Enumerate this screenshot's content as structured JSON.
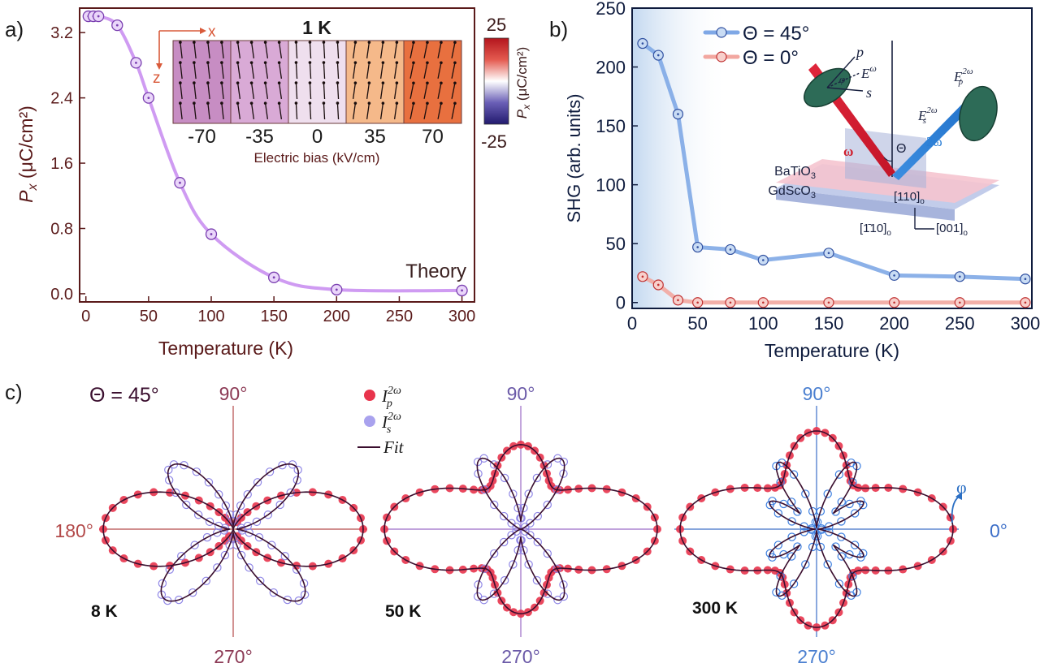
{
  "panels": {
    "a": "a)",
    "b": "b)",
    "c": "c)"
  },
  "colors": {
    "panel_a_axes": "#5a1a1a",
    "panel_a_line": "#cf9bf2",
    "panel_a_marker": "#7a3fb0",
    "panel_b_axes": "#0e1b3d",
    "series_45": "#7fa8e6",
    "series_0": "#f2a7a0",
    "ip": "#e8344c",
    "is": "#8f86e6",
    "fit": "#3a0e2e",
    "axis_c1": "#b34a4a",
    "axis_c2": "#9b6bc6",
    "axis_c3": "#3d6fc8"
  },
  "chart_data": [
    {
      "id": "a",
      "type": "line",
      "xlabel": "Temperature (K)",
      "ylabel_main": "P",
      "ylabel_sub": "x",
      "ylabel_unit": " (μC/cm²)",
      "xlim": [
        -5,
        310
      ],
      "ylim": [
        -0.1,
        3.5
      ],
      "xticks": [
        0,
        50,
        100,
        150,
        200,
        250,
        300
      ],
      "yticks": [
        0.0,
        0.8,
        1.6,
        2.4,
        3.2
      ],
      "ytick_labels": [
        "0.0",
        "0.8",
        "1.6",
        "2.4",
        "3.2"
      ],
      "x": [
        2,
        6,
        10,
        25,
        40,
        50,
        75,
        100,
        150,
        200,
        300
      ],
      "y": [
        3.4,
        3.4,
        3.4,
        3.29,
        2.83,
        2.4,
        1.36,
        0.73,
        0.2,
        0.05,
        0.04
      ],
      "annotation": "Theory",
      "inset": {
        "title": "1 K",
        "axis_x": "x",
        "axis_z": "z",
        "xlabel": "Electric bias (kV/cm)",
        "bias_labels": [
          "-70",
          "-35",
          "0",
          "35",
          "70"
        ],
        "cell_colors": [
          "#c78dc3",
          "#d9aad6",
          "#efdfee",
          "#f5b98a",
          "#e8703f"
        ],
        "arrow_angles_deg": [
          -8,
          -10,
          -4,
          10,
          14
        ],
        "colorbar_max": "25",
        "colorbar_min": "-25",
        "colorbar_label_main": "P",
        "colorbar_label_sub": "x",
        "colorbar_label_unit": " (μC/cm²)"
      }
    },
    {
      "id": "b",
      "type": "line",
      "xlabel": "Temperature (K)",
      "ylabel": "SHG (arb. units)",
      "xlim": [
        0,
        305
      ],
      "ylim": [
        -5,
        250
      ],
      "xticks": [
        0,
        50,
        100,
        150,
        200,
        250,
        300
      ],
      "yticks": [
        0,
        50,
        100,
        150,
        200,
        250
      ],
      "series": [
        {
          "name": "Θ = 45°",
          "x": [
            8,
            20,
            35,
            50,
            75,
            100,
            150,
            200,
            250,
            300
          ],
          "y": [
            220,
            210,
            160,
            47,
            45,
            36,
            42,
            23,
            22,
            20
          ]
        },
        {
          "name": "Θ = 0°",
          "x": [
            8,
            20,
            35,
            50,
            75,
            100,
            150,
            200,
            250,
            300
          ],
          "y": [
            22,
            15,
            2,
            0,
            0,
            0,
            0,
            0,
            0,
            0
          ]
        }
      ],
      "shaded_region": [
        0,
        75
      ],
      "schematic": {
        "p": "p",
        "s": "s",
        "phi": "φ",
        "e_omega": "E",
        "e_omega_sup": "ω",
        "ep_main": "E",
        "ep_sub": "p",
        "ep_sup": "2ω",
        "es_main": "E",
        "es_sub": "s",
        "es_sup": "2ω",
        "omega": "ω",
        "two_omega": "2ω",
        "theta": "Θ",
        "bto_main": "BaTiO",
        "bto_sub": "3",
        "gso_main": "GdScO",
        "gso_sub": "3",
        "dir1_main": "[110]",
        "dir1_sub": "o",
        "dir2_main": "[1̄10]",
        "dir2_sub": "o",
        "dir3_main": "[001]",
        "dir3_sub": "o"
      }
    },
    {
      "id": "c",
      "type": "polar",
      "theta_label": "Θ = 45°",
      "angle_labels": {
        "top": "90°",
        "bottom": "270°",
        "left": "180°",
        "right": "0°"
      },
      "phi_label": "φ",
      "legend": {
        "ip_main": "I",
        "ip_sub": "p",
        "is_main": "I",
        "is_sub": "s",
        "sup": "2ω",
        "fit": "Fit"
      },
      "plots": [
        {
          "temperature": "8 K",
          "p_lobe_pair": {
            "a": 1.0,
            "b": 0.0,
            "axis_deg": 0
          },
          "p_scale": 160,
          "s_lobes": {
            "amp": 1.0,
            "angles_deg": [
              45,
              135,
              225,
              315
            ],
            "widths": [
              0.3,
              0.3,
              0.3,
              0.3
            ],
            "amps": [
              0.95,
              0.95,
              1.05,
              1.05
            ]
          },
          "s_scale": 115
        },
        {
          "temperature": "50 K",
          "p_lobe_pair": {
            "a": 1.0,
            "b": 0.62,
            "axis_deg": 0
          },
          "p_scale": 168,
          "s_lobes": {
            "amp": 1.0,
            "angles_deg": [
              60,
              120,
              240,
              300
            ],
            "widths": [
              0.24,
              0.24,
              0.24,
              0.24
            ],
            "amps": [
              1.0,
              1.0,
              1.0,
              1.0
            ]
          },
          "s_scale": 100
        },
        {
          "temperature": "300 K",
          "p_lobe_pair": {
            "a": 1.0,
            "b": 0.72,
            "axis_deg": 0
          },
          "p_scale": 168,
          "s_lobes": {
            "amp": 1.0,
            "angles_deg": [
              30,
              60,
              120,
              150,
              210,
              240,
              300,
              330
            ],
            "widths": [
              0.18,
              0.18,
              0.18,
              0.18,
              0.18,
              0.18,
              0.18,
              0.18
            ],
            "amps": [
              0.7,
              1.0,
              1.0,
              0.7,
              0.7,
              1.0,
              1.0,
              0.7
            ]
          },
          "s_scale": 95
        }
      ]
    }
  ]
}
